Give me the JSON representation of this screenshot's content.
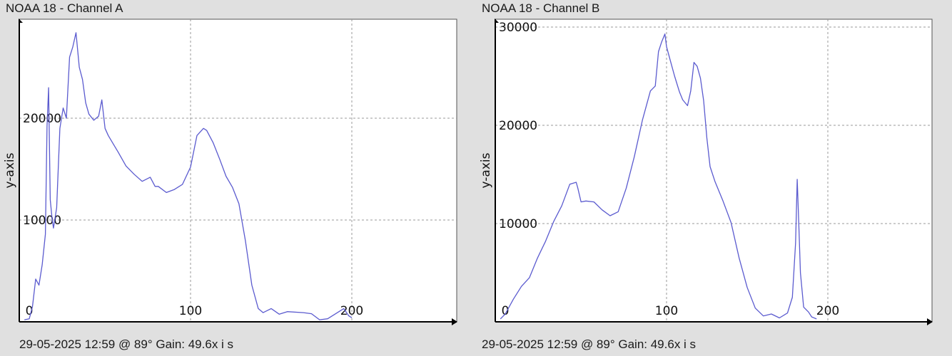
{
  "panels": [
    {
      "title": "NOAA 18 - Channel A",
      "status": "29-05-2025 12:59 @ 89° Gain: 49.6",
      "axis_overlay_label": "x i s"
    },
    {
      "title": "NOAA 18 - Channel B",
      "status": "29-05-2025 12:59 @ 89° Gain: 49.6",
      "axis_overlay_label": "x i s"
    }
  ],
  "colors": {
    "plot_background": "#ffffff",
    "page_background": "#e0e0e0",
    "line": "#5b5bcf",
    "grid": "#9a9a9a",
    "axis": "#000000"
  },
  "chart_data": [
    {
      "type": "line",
      "title": "NOAA 18 - Channel A",
      "xlabel": "",
      "ylabel": "y-axis",
      "xlim": [
        -5,
        250
      ],
      "ylim": [
        -500,
        30500
      ],
      "xticks": [
        0,
        100,
        200
      ],
      "yticks": [
        10000,
        20000
      ],
      "grid": true,
      "series": [
        {
          "x": [
            -3,
            0,
            2,
            4,
            6,
            8,
            10,
            11,
            12,
            13,
            14,
            15,
            17,
            19,
            21,
            23,
            25,
            27,
            29,
            31,
            33,
            35,
            37,
            40,
            43,
            45,
            47,
            49,
            52,
            55,
            60,
            65,
            70,
            75,
            78,
            80,
            85,
            90,
            95,
            100,
            104,
            108,
            110,
            114,
            118,
            122,
            126,
            130,
            134,
            138,
            142,
            145,
            150,
            155,
            160,
            170,
            175,
            180,
            185,
            190,
            195,
            198,
            200
          ],
          "y": [
            200,
            300,
            1500,
            4200,
            3600,
            5600,
            8600,
            19200,
            23000,
            12000,
            10400,
            9200,
            11200,
            19000,
            21000,
            20000,
            26000,
            27000,
            28400,
            25000,
            23800,
            21500,
            20400,
            19800,
            20200,
            21800,
            19000,
            18300,
            17500,
            16700,
            15300,
            14500,
            13800,
            14200,
            13300,
            13300,
            12700,
            13000,
            13500,
            15200,
            18300,
            19000,
            18800,
            17600,
            16000,
            14300,
            13200,
            11600,
            8000,
            3600,
            1300,
            900,
            1300,
            750,
            1000,
            900,
            800,
            200,
            300,
            800,
            1300,
            600,
            400
          ]
        }
      ]
    },
    {
      "type": "line",
      "title": "NOAA 18 - Channel B",
      "xlabel": "",
      "ylabel": "y-axis",
      "xlim": [
        -5,
        250
      ],
      "ylim": [
        -500,
        30500
      ],
      "xticks": [
        0,
        100,
        200
      ],
      "yticks": [
        10000,
        20000,
        30000
      ],
      "grid": true,
      "series": [
        {
          "x": [
            -3,
            0,
            5,
            10,
            15,
            20,
            25,
            30,
            35,
            40,
            44,
            45,
            47,
            50,
            55,
            60,
            65,
            70,
            75,
            80,
            85,
            90,
            93,
            95,
            97,
            99,
            100,
            102,
            105,
            108,
            110,
            113,
            115,
            117,
            119,
            121,
            123,
            125,
            127,
            130,
            135,
            140,
            145,
            150,
            155,
            160,
            165,
            170,
            175,
            178,
            180,
            181,
            182,
            183,
            185,
            188,
            190,
            193
          ],
          "y": [
            300,
            800,
            2300,
            3600,
            4500,
            6500,
            8200,
            10200,
            11800,
            14000,
            14200,
            13600,
            12200,
            12300,
            12200,
            11400,
            10800,
            11200,
            13600,
            16800,
            20500,
            23500,
            24000,
            27500,
            28500,
            29300,
            28000,
            26800,
            25000,
            23400,
            22600,
            22000,
            23500,
            26400,
            26000,
            24800,
            22500,
            18700,
            15800,
            14300,
            12300,
            10100,
            6500,
            3500,
            1400,
            600,
            800,
            400,
            900,
            2500,
            8000,
            14500,
            10000,
            5000,
            1500,
            1000,
            500,
            300
          ]
        }
      ]
    }
  ]
}
